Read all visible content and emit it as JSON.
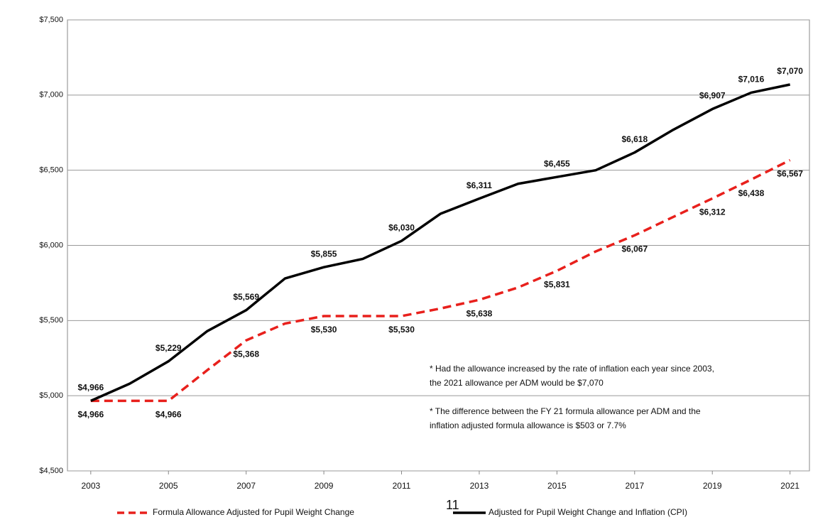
{
  "chart_data": {
    "type": "line",
    "x": [
      2003,
      2004,
      2005,
      2006,
      2007,
      2008,
      2009,
      2010,
      2011,
      2012,
      2013,
      2014,
      2015,
      2016,
      2017,
      2018,
      2019,
      2020,
      2021
    ],
    "xlim": [
      2002.4,
      2021.5
    ],
    "xticks": [
      2003,
      2005,
      2007,
      2009,
      2011,
      2013,
      2015,
      2017,
      2019,
      2021
    ],
    "ylim": [
      4500,
      7500
    ],
    "yticks": [
      {
        "value": 4500,
        "label": "$4,500"
      },
      {
        "value": 5000,
        "label": "$5,000"
      },
      {
        "value": 5500,
        "label": "$5,500"
      },
      {
        "value": 6000,
        "label": "$6,000"
      },
      {
        "value": 6500,
        "label": "$6,500"
      },
      {
        "value": 7000,
        "label": "$7,000"
      },
      {
        "value": 7500,
        "label": "$7,500"
      }
    ],
    "grid": true,
    "series": [
      {
        "name": "Formula Allowance Adjusted for Pupil Weight Change",
        "color": "#e8201c",
        "dashed": true,
        "values": [
          4966,
          4966,
          4966,
          5170,
          5368,
          5480,
          5530,
          5530,
          5530,
          5580,
          5638,
          5720,
          5831,
          5960,
          6067,
          6190,
          6312,
          6438,
          6567
        ],
        "value_labels": [
          "$4,966",
          null,
          "$4,966",
          null,
          "$5,368",
          null,
          "$5,530",
          null,
          "$5,530",
          null,
          "$5,638",
          null,
          "$5,831",
          null,
          "$6,067",
          null,
          "$6,312",
          "$6,438",
          "$6,567"
        ]
      },
      {
        "name": "Adjusted for Pupil Weight Change and Inflation (CPI)",
        "color": "#000000",
        "dashed": false,
        "values": [
          4966,
          5080,
          5229,
          5430,
          5569,
          5780,
          5855,
          5910,
          6030,
          6210,
          6311,
          6410,
          6455,
          6500,
          6618,
          6770,
          6907,
          7016,
          7070
        ],
        "value_labels": [
          "$4,966",
          null,
          "$5,229",
          null,
          "$5,569",
          null,
          "$5,855",
          null,
          "$6,030",
          null,
          "$6,311",
          null,
          "$6,455",
          null,
          "$6,618",
          null,
          "$6,907",
          "$7,016",
          "$7,070"
        ]
      }
    ],
    "annotations": [
      "* Had the allowance increased by the rate of inflation each year since 2003,",
      "the 2021 allowance per ADM would be $7,070",
      "* The difference  between  the FY 21 formula allowance per ADM and the",
      "inflation adjusted formula allowance is $503 or 7.7%"
    ],
    "page_number": "11"
  }
}
